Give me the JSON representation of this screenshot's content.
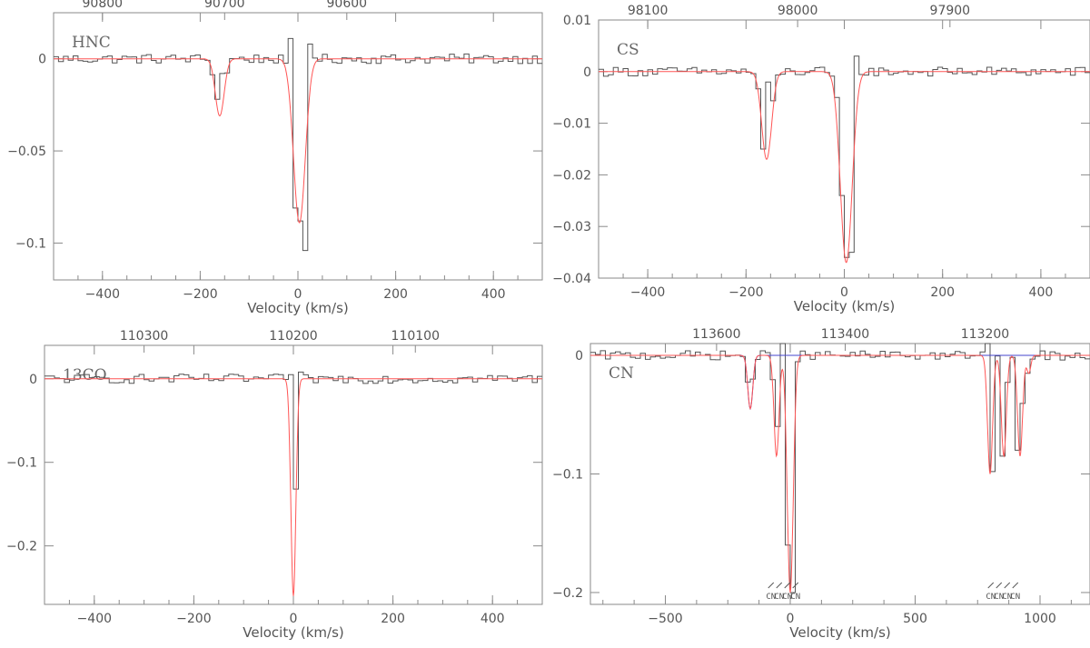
{
  "colors": {
    "axis": "#8a8a8a",
    "observed": "#555555",
    "fit": "#ff5555",
    "component": "#4444cc"
  },
  "chart_data": [
    {
      "type": "line",
      "molecule": "HNC",
      "xlabel": "Velocity (km/s)",
      "xlim": [
        -500,
        500
      ],
      "ylim": [
        -0.12,
        0.025
      ],
      "xticks": [
        -400,
        -200,
        0,
        200,
        400
      ],
      "xtick_labels": [
        "−400",
        "−200",
        "0",
        "200",
        "400"
      ],
      "yticks": [
        0,
        -0.05,
        -0.1
      ],
      "ytick_labels": [
        "0",
        "−0.05",
        "−0.1"
      ],
      "top_axis": {
        "ticks": [
          -400,
          -150,
          100
        ],
        "labels": [
          "90800",
          "90700",
          "90600"
        ]
      },
      "lines": [
        {
          "v0": -160,
          "depth": -0.031,
          "width": 9
        },
        {
          "v0": 3,
          "depth": -0.089,
          "width": 12
        }
      ],
      "observed_spikes": [
        {
          "x": -170,
          "y": 0.008
        },
        {
          "x": -161,
          "y": -0.022
        },
        {
          "x": -152,
          "y": -0.008
        },
        {
          "x": -15,
          "y": 0.011
        },
        {
          "x": -6,
          "y": -0.081
        },
        {
          "x": 3,
          "y": -0.088
        },
        {
          "x": 12,
          "y": -0.104
        },
        {
          "x": 21,
          "y": 0.008
        }
      ]
    },
    {
      "type": "line",
      "molecule": "CS",
      "xlabel": "Velocity (km/s)",
      "xlim": [
        -500,
        500
      ],
      "ylim": [
        -0.04,
        0.01
      ],
      "xticks": [
        -400,
        -200,
        0,
        200,
        400
      ],
      "xtick_labels": [
        "−400",
        "−200",
        "0",
        "200",
        "400"
      ],
      "yticks": [
        0.01,
        0,
        -0.01,
        -0.02,
        -0.03,
        -0.04
      ],
      "ytick_labels": [
        "0.01",
        "0",
        "−0.01",
        "−0.02",
        "−0.03",
        "−0.04"
      ],
      "top_axis": {
        "ticks": [
          -400,
          -95,
          215
        ],
        "labels": [
          "98100",
          "98000",
          "97900"
        ]
      },
      "lines": [
        {
          "v0": -158,
          "depth": -0.017,
          "width": 10
        },
        {
          "v0": 4,
          "depth": -0.037,
          "width": 12
        }
      ],
      "observed_spikes": [
        {
          "x": -170,
          "y": -0.002
        },
        {
          "x": -161,
          "y": -0.015
        },
        {
          "x": -152,
          "y": -0.002
        },
        {
          "x": -15,
          "y": -0.005
        },
        {
          "x": -6,
          "y": -0.024
        },
        {
          "x": 3,
          "y": -0.036
        },
        {
          "x": 12,
          "y": -0.035
        },
        {
          "x": 21,
          "y": 0.003
        }
      ]
    },
    {
      "type": "line",
      "molecule": "13CO",
      "xlabel": "Velocity (km/s)",
      "xlim": [
        -500,
        500
      ],
      "ylim": [
        -0.27,
        0.04
      ],
      "xticks": [
        -400,
        -200,
        0,
        200,
        400
      ],
      "xtick_labels": [
        "−400",
        "−200",
        "0",
        "200",
        "400"
      ],
      "yticks": [
        0,
        -0.1,
        -0.2
      ],
      "ytick_labels": [
        "0",
        "−0.1",
        "−0.2"
      ],
      "top_axis": {
        "ticks": [
          -300,
          0,
          245
        ],
        "labels": [
          "110300",
          "110200",
          "110100"
        ]
      },
      "lines": [
        {
          "v0": 0,
          "depth": -0.26,
          "width": 5
        }
      ],
      "observed_spikes": [
        {
          "x": -9,
          "y": 0.005
        },
        {
          "x": 0,
          "y": -0.132
        },
        {
          "x": 9,
          "y": -0.132
        },
        {
          "x": 18,
          "y": 0.008
        }
      ]
    },
    {
      "type": "line",
      "molecule": "CN",
      "xlabel": "Velocity (km/s)",
      "xlim": [
        -800,
        1200
      ],
      "ylim": [
        -0.21,
        0.01
      ],
      "xticks": [
        -500,
        0,
        500,
        1000
      ],
      "xtick_labels": [
        "−500",
        "0",
        "500",
        "1000"
      ],
      "yticks": [
        0,
        -0.1,
        -0.2
      ],
      "ytick_labels": [
        "0",
        "−0.1",
        "−0.2"
      ],
      "top_axis": {
        "ticks": [
          -295,
          220,
          780
        ],
        "labels": [
          "113600",
          "113400",
          "113200"
        ]
      },
      "lines": [
        {
          "v0": -160,
          "depth": -0.045,
          "width": 10,
          "component": true
        },
        {
          "v0": -55,
          "depth": -0.085,
          "width": 10
        },
        {
          "v0": 0,
          "depth": -0.2,
          "width": 12
        },
        {
          "v0": 800,
          "depth": -0.1,
          "width": 10
        },
        {
          "v0": 855,
          "depth": -0.085,
          "width": 10
        },
        {
          "v0": 920,
          "depth": -0.085,
          "width": 10
        },
        {
          "v0": 955,
          "depth": -0.015,
          "width": 8
        }
      ],
      "observed_spikes": [
        {
          "x": -160,
          "y": -0.02
        },
        {
          "x": -55,
          "y": -0.06
        },
        {
          "x": -25,
          "y": 0.01
        },
        {
          "x": -8,
          "y": -0.16
        },
        {
          "x": 5,
          "y": -0.2
        },
        {
          "x": 790,
          "y": 0.018
        },
        {
          "x": 800,
          "y": -0.098
        },
        {
          "x": 850,
          "y": -0.085
        },
        {
          "x": 915,
          "y": -0.08
        }
      ],
      "hfs_markers": [
        {
          "x": -30,
          "labels": [
            "CN",
            "CN",
            "CN",
            "CN"
          ]
        },
        {
          "x": 850,
          "labels": [
            "CN",
            "CN",
            "CN",
            "CN"
          ]
        }
      ]
    }
  ]
}
